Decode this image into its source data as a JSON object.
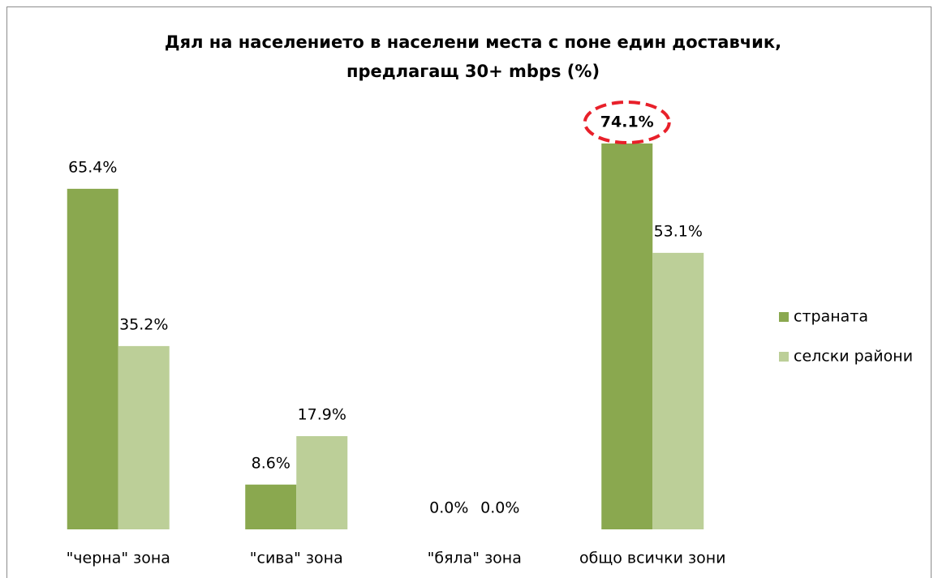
{
  "chart_data": {
    "type": "bar",
    "title": [
      "Дял на населението в населени места с поне един доставчик,",
      "предлагащ 30+ mbps (%)"
    ],
    "categories": [
      "\"черна\" зона",
      "\"сива\" зона",
      "\"бяла\" зона",
      "общо всички зони"
    ],
    "series": [
      {
        "name": "страната",
        "color": "#8aa84f",
        "values": [
          65.4,
          8.6,
          0,
          74.1
        ],
        "value_labels": [
          "65.4%",
          "8.6%",
          "0.0%",
          "74.1%"
        ]
      },
      {
        "name": "селски райони",
        "color": "#bccf98",
        "values": [
          35.2,
          17.9,
          0,
          53.1
        ],
        "value_labels": [
          "35.2%",
          "17.9%",
          "0.0%",
          "53.1%"
        ]
      }
    ],
    "legend": "right"
  }
}
